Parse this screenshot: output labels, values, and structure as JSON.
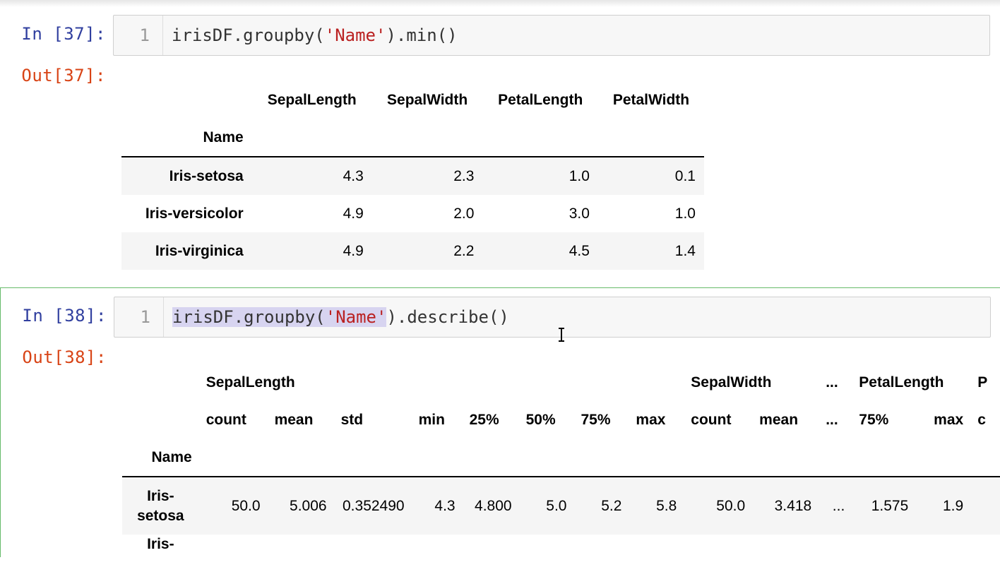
{
  "cells": [
    {
      "in_prompt": "In [37]:",
      "line_number": "1",
      "code": {
        "pre": "irisDF.groupby(",
        "str": "'Name'",
        "post": ").min()"
      },
      "out_prompt": "Out[37]:",
      "table": {
        "columns": [
          "SepalLength",
          "SepalWidth",
          "PetalLength",
          "PetalWidth"
        ],
        "index_name": "Name",
        "rows": [
          {
            "name": "Iris-setosa",
            "values": [
              "4.3",
              "2.3",
              "1.0",
              "0.1"
            ]
          },
          {
            "name": "Iris-versicolor",
            "values": [
              "4.9",
              "2.0",
              "3.0",
              "1.0"
            ]
          },
          {
            "name": "Iris-virginica",
            "values": [
              "4.9",
              "2.2",
              "4.5",
              "1.4"
            ]
          }
        ]
      }
    },
    {
      "in_prompt": "In [38]:",
      "line_number": "1",
      "code": {
        "pre": "irisDF.groupby(",
        "str": "'Name'",
        "post": ").describe()"
      },
      "out_prompt": "Out[38]:",
      "table": {
        "level0": [
          "SepalLength",
          "SepalWidth",
          "...",
          "PetalLength",
          "P"
        ],
        "level1": [
          "count",
          "mean",
          "std",
          "min",
          "25%",
          "50%",
          "75%",
          "max",
          "count",
          "mean",
          "...",
          "75%",
          "max",
          "c"
        ],
        "index_name": "Name",
        "rows": [
          {
            "name_line1": "Iris-",
            "name_line2": "setosa",
            "values": [
              "50.0",
              "5.006",
              "0.352490",
              "4.3",
              "4.800",
              "5.0",
              "5.2",
              "5.8",
              "50.0",
              "3.418",
              "...",
              "1.575",
              "1.9",
              ""
            ]
          },
          {
            "name_line1": "Iris-",
            "name_line2": "",
            "values": [
              "",
              "",
              "",
              "",
              "",
              "",
              "",
              "",
              "",
              "",
              "",
              "",
              "",
              ""
            ]
          }
        ]
      }
    }
  ]
}
